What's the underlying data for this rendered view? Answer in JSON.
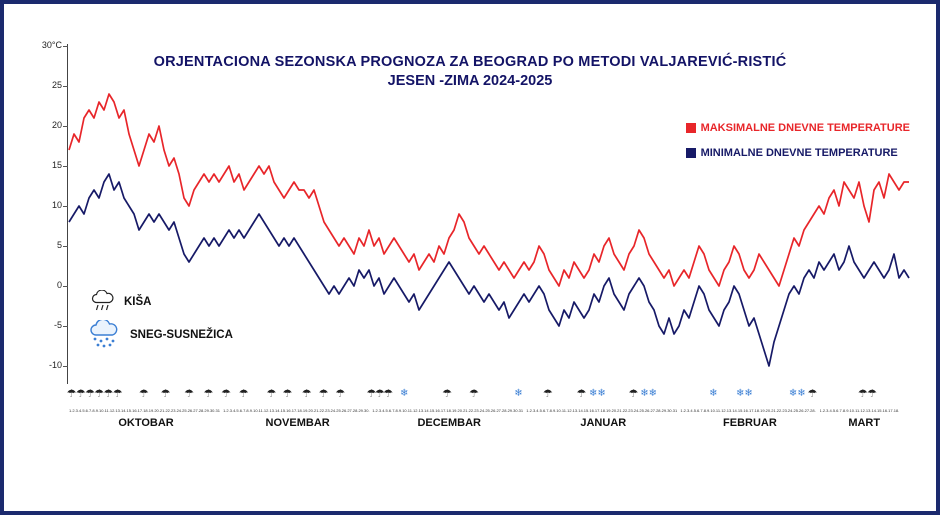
{
  "frame": {
    "border_color": "#1b2a6e",
    "background": "#ffffff"
  },
  "title": {
    "line1": "ORJENTACIONA  SEZONSKA PROGNOZA ZA BEOGRAD PO METODI VALJAREVIĆ-RISTIĆ",
    "line2": "JESEN -ZIMA 2024-2025",
    "color": "#131366"
  },
  "legend": {
    "position": "top-right",
    "max": {
      "label": "MAKSIMALNE DNEVNE TEMPERATURE",
      "color": "#e8262a"
    },
    "min": {
      "label": "MINIMALNE DNEVNE TEMPERATURE",
      "color": "#171a67"
    }
  },
  "icon_legend": {
    "rain_label": "KIŠA",
    "snow_label": "SNEG-SUSNEŽICA",
    "snow_color": "#3b7fd4"
  },
  "icons": {
    "rain_glyph": "☂",
    "snow_glyph": "❄"
  },
  "y_axis": {
    "ticks": [
      {
        "v": 30,
        "label": "30°C"
      },
      {
        "v": 25,
        "label": "25"
      },
      {
        "v": 20,
        "label": "20"
      },
      {
        "v": 15,
        "label": "15"
      },
      {
        "v": 10,
        "label": "10"
      },
      {
        "v": 5,
        "label": "5"
      },
      {
        "v": 0,
        "label": "0"
      },
      {
        "v": -5,
        "label": "-5"
      },
      {
        "v": -10,
        "label": "-10"
      }
    ]
  },
  "months": [
    {
      "label": "OKTOBAR",
      "days": 31,
      "day_ticks": "1.2.3.4.5.6.7.8.9.10.11.12.13.14.15.16.17.18.19.20.21.22.23.24.25.26.27.28.29.30.31"
    },
    {
      "label": "NOVEMBAR",
      "days": 30,
      "day_ticks": "1.2.3.4.5.6.7.8.9.10.11.12.13.14.15.16.17.18.19.20.21.22.23.24.25.26.27.28.29.30."
    },
    {
      "label": "DECEMBAR",
      "days": 31,
      "day_ticks": "1.2.3.4.5.6.7.8.9.10.11.12.13.14.15.16.17.18.19.20.21.22.23.24.25.26.27.28.29.30.31"
    },
    {
      "label": "JANUAR",
      "days": 31,
      "day_ticks": "1.2.3.4.5.6.7.8.9.10.11.12.13.14.15.16.17.18.19.20.21.22.23.24.25.26.27.28.29.30.31"
    },
    {
      "label": "FEBRUAR",
      "days": 28,
      "day_ticks": "1.2.3.4.5.6.7.8.9.10.11.12.13.14.15.16.17.18.19.20.21.22.23.24.25.26.27.28."
    },
    {
      "label": "MART",
      "days": 18,
      "day_ticks": "1.2.3.4.5.6.7.8.9.10.11.12.13.14.15.16.17.18."
    }
  ],
  "markers": [
    {
      "p": 0.3,
      "t": "rain"
    },
    {
      "p": 1.4,
      "t": "rain"
    },
    {
      "p": 2.5,
      "t": "rain"
    },
    {
      "p": 3.6,
      "t": "rain"
    },
    {
      "p": 4.7,
      "t": "rain"
    },
    {
      "p": 5.8,
      "t": "rain"
    },
    {
      "p": 8.9,
      "t": "rain"
    },
    {
      "p": 11.5,
      "t": "rain"
    },
    {
      "p": 14.3,
      "t": "rain"
    },
    {
      "p": 16.6,
      "t": "rain"
    },
    {
      "p": 18.7,
      "t": "rain"
    },
    {
      "p": 20.8,
      "t": "rain"
    },
    {
      "p": 24.1,
      "t": "rain"
    },
    {
      "p": 26.0,
      "t": "rain"
    },
    {
      "p": 28.3,
      "t": "rain"
    },
    {
      "p": 30.3,
      "t": "rain"
    },
    {
      "p": 32.3,
      "t": "rain"
    },
    {
      "p": 36.0,
      "t": "rain"
    },
    {
      "p": 37.0,
      "t": "rain"
    },
    {
      "p": 38.0,
      "t": "rain"
    },
    {
      "p": 39.9,
      "t": "snow"
    },
    {
      "p": 45.0,
      "t": "rain"
    },
    {
      "p": 48.2,
      "t": "rain"
    },
    {
      "p": 53.5,
      "t": "snow"
    },
    {
      "p": 57.0,
      "t": "rain"
    },
    {
      "p": 61.0,
      "t": "rain"
    },
    {
      "p": 62.4,
      "t": "snow"
    },
    {
      "p": 63.4,
      "t": "snow"
    },
    {
      "p": 67.2,
      "t": "rain"
    },
    {
      "p": 68.5,
      "t": "snow"
    },
    {
      "p": 69.5,
      "t": "snow"
    },
    {
      "p": 76.7,
      "t": "snow"
    },
    {
      "p": 79.9,
      "t": "snow"
    },
    {
      "p": 80.9,
      "t": "snow"
    },
    {
      "p": 86.2,
      "t": "snow"
    },
    {
      "p": 87.2,
      "t": "snow"
    },
    {
      "p": 88.5,
      "t": "rain"
    },
    {
      "p": 94.5,
      "t": "rain"
    },
    {
      "p": 95.6,
      "t": "rain"
    }
  ],
  "chart_data": {
    "type": "line",
    "title": "ORJENTACIONA SEZONSKA PROGNOZA ZA BEOGRAD PO METODI VALJAREVIĆ-RISTIĆ JESEN -ZIMA 2024-2025",
    "ylabel": "°C",
    "ylim": [
      -12,
      30
    ],
    "grid": false,
    "legend_position": "top-right",
    "x_unit": "day",
    "x_months": [
      {
        "label": "OKTOBAR",
        "days": 31
      },
      {
        "label": "NOVEMBAR",
        "days": 30
      },
      {
        "label": "DECEMBAR",
        "days": 31
      },
      {
        "label": "JANUAR",
        "days": 31
      },
      {
        "label": "FEBRUAR",
        "days": 28
      },
      {
        "label": "MART",
        "days": 18
      }
    ],
    "series": [
      {
        "key": "max",
        "name": "MAKSIMALNE DNEVNE TEMPERATURE",
        "color": "#e8262a",
        "values": [
          17,
          19,
          18,
          21,
          22,
          21,
          23,
          22,
          24,
          23,
          21,
          22,
          19,
          17,
          15,
          17,
          19,
          18,
          20,
          17,
          15,
          16,
          14,
          11,
          10,
          12,
          13,
          14,
          13,
          14,
          13,
          14,
          15,
          13,
          14,
          12,
          13,
          14,
          15,
          14,
          15,
          13,
          12,
          11,
          12,
          13,
          12,
          12,
          11,
          12,
          10,
          8,
          7,
          6,
          5,
          6,
          5,
          4,
          6,
          5,
          7,
          5,
          6,
          4,
          5,
          6,
          5,
          4,
          3,
          4,
          2,
          3,
          4,
          3,
          5,
          4,
          6,
          7,
          9,
          8,
          6,
          5,
          4,
          5,
          4,
          3,
          2,
          3,
          2,
          1,
          2,
          3,
          2,
          3,
          5,
          4,
          2,
          1,
          0,
          2,
          1,
          3,
          2,
          1,
          2,
          4,
          3,
          5,
          6,
          4,
          3,
          2,
          4,
          5,
          7,
          6,
          4,
          3,
          2,
          1,
          2,
          0,
          1,
          2,
          1,
          3,
          5,
          4,
          2,
          1,
          0,
          2,
          3,
          5,
          4,
          2,
          1,
          2,
          4,
          3,
          2,
          1,
          0,
          2,
          4,
          6,
          5,
          7,
          8,
          9,
          10,
          9,
          11,
          12,
          10,
          13,
          12,
          11,
          13,
          10,
          8,
          12,
          13,
          11,
          14,
          13,
          12,
          13,
          13
        ]
      },
      {
        "key": "min",
        "name": "MINIMALNE DNEVNE TEMPERATURE",
        "color": "#171a67",
        "values": [
          8,
          9,
          10,
          9,
          11,
          12,
          11,
          13,
          14,
          12,
          13,
          11,
          10,
          9,
          7,
          8,
          9,
          8,
          9,
          8,
          7,
          8,
          6,
          4,
          3,
          4,
          5,
          6,
          5,
          6,
          5,
          6,
          7,
          6,
          7,
          6,
          7,
          8,
          9,
          8,
          7,
          6,
          5,
          6,
          5,
          6,
          5,
          4,
          3,
          2,
          1,
          0,
          -1,
          0,
          -1,
          0,
          1,
          0,
          2,
          1,
          2,
          0,
          1,
          -1,
          0,
          1,
          0,
          -1,
          -2,
          -1,
          -3,
          -2,
          -1,
          0,
          1,
          2,
          3,
          2,
          1,
          0,
          -1,
          0,
          -1,
          -2,
          -1,
          -2,
          -3,
          -2,
          -4,
          -3,
          -2,
          -1,
          -2,
          -1,
          0,
          -1,
          -3,
          -4,
          -5,
          -3,
          -4,
          -2,
          -3,
          -4,
          -3,
          -1,
          -2,
          0,
          1,
          -1,
          -2,
          -3,
          -1,
          0,
          1,
          0,
          -2,
          -3,
          -5,
          -6,
          -4,
          -6,
          -5,
          -3,
          -4,
          -2,
          0,
          -1,
          -3,
          -4,
          -5,
          -3,
          -2,
          0,
          -1,
          -3,
          -5,
          -4,
          -6,
          -8,
          -10,
          -7,
          -5,
          -3,
          -1,
          0,
          -1,
          1,
          2,
          1,
          3,
          2,
          3,
          4,
          2,
          3,
          5,
          3,
          2,
          1,
          2,
          3,
          2,
          1,
          2,
          4,
          1,
          2,
          1
        ]
      }
    ]
  }
}
